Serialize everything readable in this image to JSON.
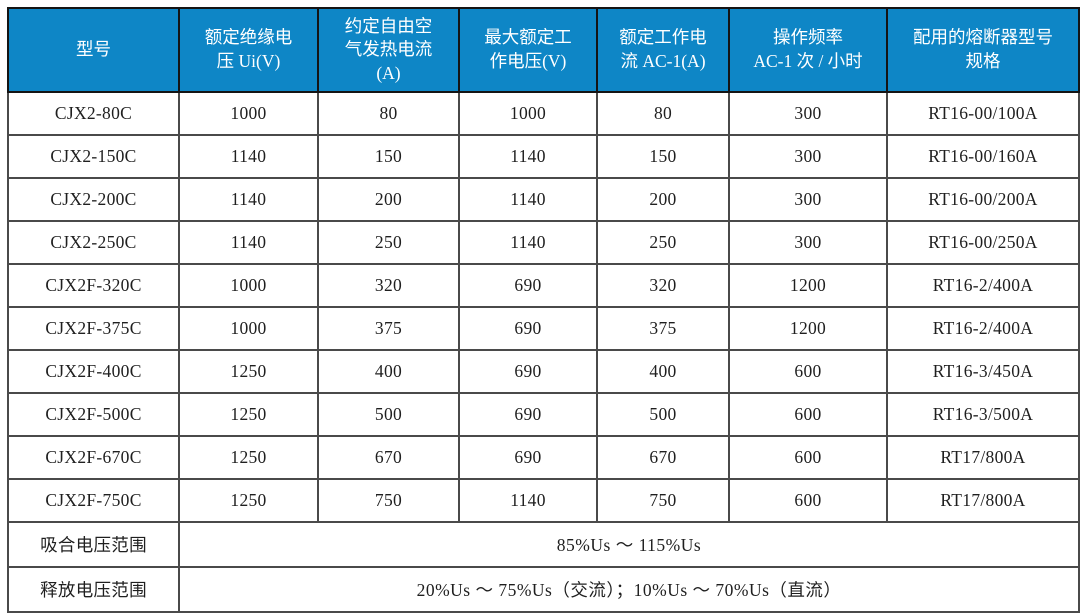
{
  "theme": {
    "header_bg": "#0e86c6",
    "header_text": "#ffffff",
    "border_outer": "#141414",
    "border_inner": "#4a4a4a",
    "body_text": "#1f1f1f"
  },
  "table": {
    "columns": [
      "型号",
      "额定绝缘电\n压 Ui(V)",
      "约定自由空\n气发热电流\n(A)",
      "最大额定工\n作电压(V)",
      "额定工作电\n流 AC-1(A)",
      "操作频率\nAC-1 次 / 小时",
      "配用的熔断器型号\n规格"
    ],
    "rows": [
      [
        "CJX2-80C",
        "1000",
        "80",
        "1000",
        "80",
        "300",
        "RT16-00/100A"
      ],
      [
        "CJX2-150C",
        "1140",
        "150",
        "1140",
        "150",
        "300",
        "RT16-00/160A"
      ],
      [
        "CJX2-200C",
        "1140",
        "200",
        "1140",
        "200",
        "300",
        "RT16-00/200A"
      ],
      [
        "CJX2-250C",
        "1140",
        "250",
        "1140",
        "250",
        "300",
        "RT16-00/250A"
      ],
      [
        "CJX2F-320C",
        "1000",
        "320",
        "690",
        "320",
        "1200",
        "RT16-2/400A"
      ],
      [
        "CJX2F-375C",
        "1000",
        "375",
        "690",
        "375",
        "1200",
        "RT16-2/400A"
      ],
      [
        "CJX2F-400C",
        "1250",
        "400",
        "690",
        "400",
        "600",
        "RT16-3/450A"
      ],
      [
        "CJX2F-500C",
        "1250",
        "500",
        "690",
        "500",
        "600",
        "RT16-3/500A"
      ],
      [
        "CJX2F-670C",
        "1250",
        "670",
        "690",
        "670",
        "600",
        "RT17/800A"
      ],
      [
        "CJX2F-750C",
        "1250",
        "750",
        "1140",
        "750",
        "600",
        "RT17/800A"
      ]
    ],
    "footer_rows": [
      {
        "label": "吸合电压范围",
        "value": "85%Us ～ 115%Us"
      },
      {
        "label": "释放电压范围",
        "value": "20%Us ～ 75%Us（交流）；10%Us ～ 70%Us（直流）"
      }
    ]
  }
}
